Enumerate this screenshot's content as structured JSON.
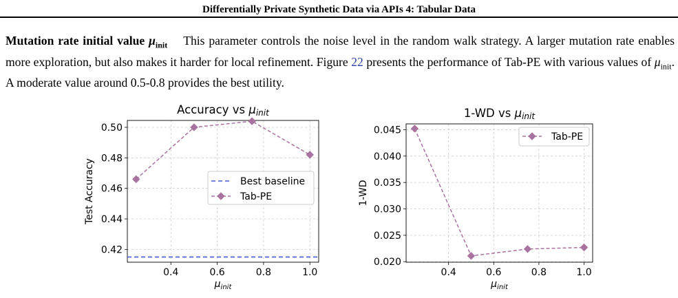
{
  "header": {
    "title": "Differentially Private Synthetic Data via APIs 4: Tabular Data"
  },
  "paragraph": {
    "heading": "Mutation rate initial value",
    "heading_symbol": "μ",
    "heading_sub": "init",
    "text_1": "This parameter controls the noise level in the random walk strategy. A larger mutation rate enables more exploration, but also makes it harder for local refinement. Figure ",
    "figure_ref": "22",
    "text_2": " presents the performance of Tab-PE with various values of ",
    "inline_symbol": "μ",
    "inline_sub": "init",
    "text_3": ". A moderate value around 0.5-0.8 provides the best utility."
  },
  "colors": {
    "tab_pe": "#a8739e",
    "baseline": "#4a58e0",
    "grid": "#cccccc",
    "link": "#2b3fa6"
  },
  "chart_data": [
    {
      "type": "line",
      "title": "Accuracy vs μinit",
      "title_prefix": "Accuracy vs ",
      "xlabel": "μinit",
      "ylabel": "Test Accuracy",
      "xlim": [
        0.212,
        1.038
      ],
      "ylim": [
        0.4116,
        0.5045
      ],
      "x_ticks": [
        0.4,
        0.6,
        0.8,
        1.0
      ],
      "x_tick_labels": [
        "0.4",
        "0.6",
        "0.8",
        "1.0"
      ],
      "y_ticks": [
        0.42,
        0.44,
        0.46,
        0.48,
        0.5
      ],
      "y_tick_labels": [
        "0.42",
        "0.44",
        "0.46",
        "0.48",
        "0.50"
      ],
      "grid": true,
      "legend_position": "center-right",
      "series": [
        {
          "name": "Best baseline",
          "style": "dashed-hline",
          "y": 0.415
        },
        {
          "name": "Tab-PE",
          "style": "dashed-diamond",
          "x": [
            0.25,
            0.5,
            0.75,
            1.0
          ],
          "y": [
            0.466,
            0.5,
            0.504,
            0.482
          ]
        }
      ]
    },
    {
      "type": "line",
      "title": "1-WD vs μinit",
      "title_prefix": "1-WD vs ",
      "xlabel": "μinit",
      "ylabel": "1-WD",
      "xlim": [
        0.212,
        1.038
      ],
      "ylim": [
        0.0199,
        0.0461
      ],
      "x_ticks": [
        0.4,
        0.6,
        0.8,
        1.0
      ],
      "x_tick_labels": [
        "0.4",
        "0.6",
        "0.8",
        "1.0"
      ],
      "y_ticks": [
        0.02,
        0.025,
        0.03,
        0.035,
        0.04,
        0.045
      ],
      "y_tick_labels": [
        "0.020",
        "0.025",
        "0.030",
        "0.035",
        "0.040",
        "0.045"
      ],
      "grid": true,
      "legend_position": "top-right",
      "series": [
        {
          "name": "Tab-PE",
          "style": "dashed-diamond",
          "x": [
            0.25,
            0.5,
            0.75,
            1.0
          ],
          "y": [
            0.0452,
            0.0211,
            0.0224,
            0.0227
          ]
        }
      ]
    }
  ]
}
